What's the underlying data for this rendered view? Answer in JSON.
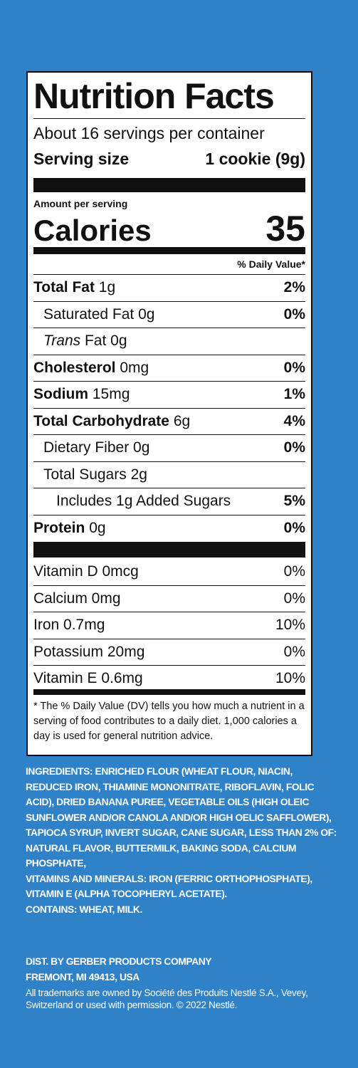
{
  "panel": {
    "title": "Nutrition Facts",
    "servings": "About 16 servings per container",
    "serving_size_label": "Serving size",
    "serving_size": "1 cookie (9g)",
    "amount_per_serving": "Amount per serving",
    "calories_label": "Calories",
    "calories": 35,
    "dv_header": "% Daily Value*",
    "nutrients": [
      {
        "name": "Total Fat",
        "amount": "1g",
        "dv": "2%"
      },
      {
        "name": "Saturated Fat 0g",
        "dv": "0%"
      },
      {
        "name": "Trans",
        "amount": "Fat 0g"
      },
      {
        "name": "Cholesterol",
        "amount": "0mg",
        "dv": "0%"
      },
      {
        "name": "Sodium",
        "amount": "15mg",
        "dv": "1%"
      },
      {
        "name": "Total Carbohydrate",
        "amount": "6g",
        "dv": "4%"
      },
      {
        "name": "Dietary Fiber 0g",
        "dv": "0%"
      },
      {
        "name": "Total Sugars 2g"
      },
      {
        "name": "Includes 1g Added Sugars",
        "dv": "5%"
      },
      {
        "name": "Protein",
        "amount": "0g",
        "dv": "0%"
      }
    ],
    "vitamins": [
      {
        "name": "Vitamin D 0mcg",
        "dv": "0%"
      },
      {
        "name": "Calcium 0mg",
        "dv": "0%"
      },
      {
        "name": "Iron 0.7mg",
        "dv": "10%"
      },
      {
        "name": "Potassium 20mg",
        "dv": "0%"
      },
      {
        "name": "Vitamin E 0.6mg",
        "dv": "10%"
      }
    ],
    "footnote": "* The % Daily Value (DV) tells you how much a nutrient in a serving of food contributes to a daily diet. 1,000 calories a day is used for general nutrition advice."
  },
  "ingredients": {
    "label": "INGREDIENTS:",
    "text": "ENRICHED FLOUR (WHEAT FLOUR, NIACIN, REDUCED IRON, THIAMINE MONONITRATE, RIBOFLAVIN, FOLIC ACID), DRIED BANANA PUREE, VEGETABLE OILS (HIGH OLEIC SUNFLOWER AND/OR CANOLA AND/OR HIGH OELIC SAFFLOWER), TAPIOCA SYRUP, INVERT SUGAR, CANE SUGAR, LESS THAN 2% OF: NATURAL FLAVOR, BUTTERMILK, BAKING SODA, CALCIUM PHOSPHATE,"
  },
  "vitamins_minerals": {
    "label": "VITAMINS AND MINERALS:",
    "text": "IRON (FERRIC ORTHOPHOSPHATE), VITAMIN E (ALPHA TOCOPHERYL ACETATE)."
  },
  "contains": "CONTAINS: WHEAT, MILK.",
  "distributor": [
    "DIST. BY GERBER PRODUCTS COMPANY",
    "FREMONT, MI 49413, USA"
  ],
  "trademark": "All trademarks are owned by Société des Produits Nestlé S.A., Vevey, Switzerland or used with permission. © 2022 Nestlé."
}
